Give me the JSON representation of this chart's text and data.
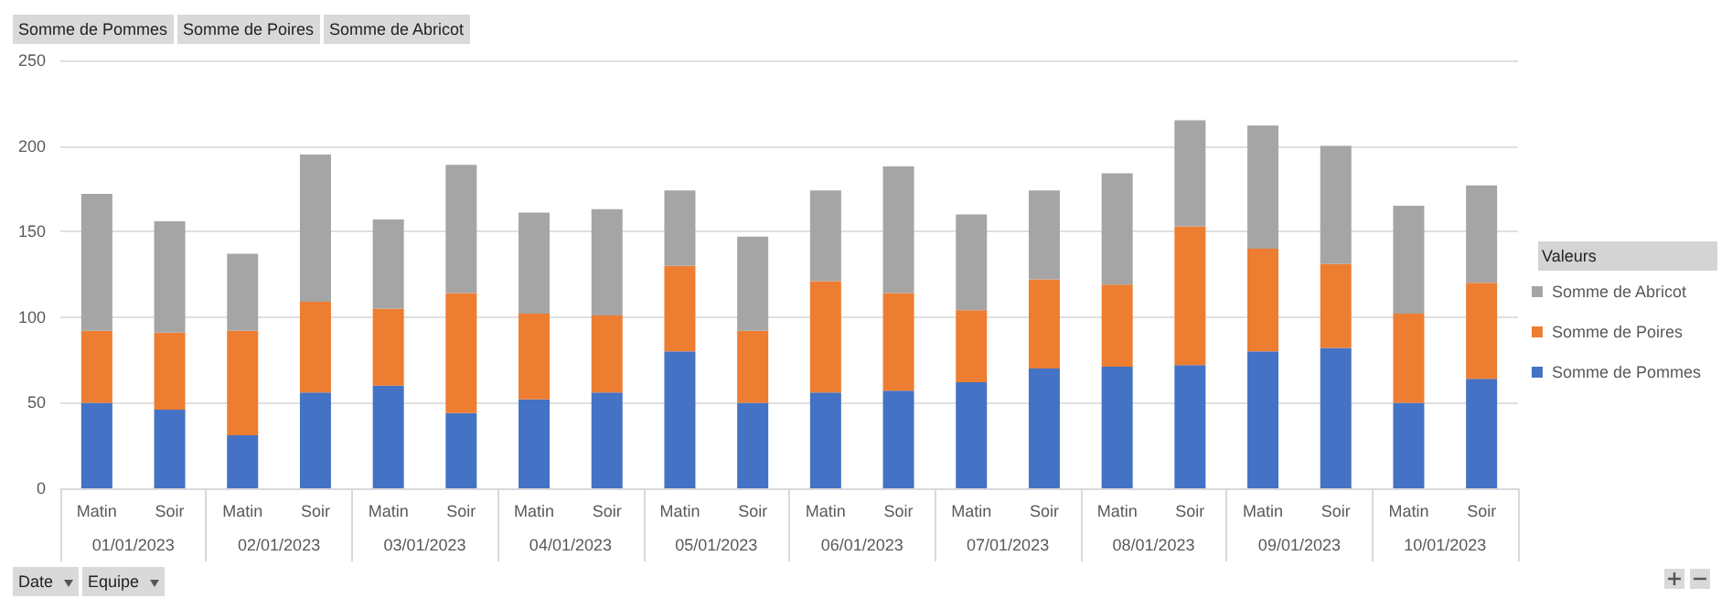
{
  "chart_data": {
    "type": "bar",
    "stacked": true,
    "categories": [
      "Matin",
      "Soir",
      "Matin",
      "Soir",
      "Matin",
      "Soir",
      "Matin",
      "Soir",
      "Matin",
      "Soir",
      "Matin",
      "Soir",
      "Matin",
      "Soir",
      "Matin",
      "Soir",
      "Matin",
      "Soir",
      "Matin",
      "Soir"
    ],
    "series": [
      {
        "name": "Somme de Pommes",
        "color": "#4472c4",
        "values": [
          50,
          46,
          31,
          56,
          60,
          44,
          52,
          56,
          80,
          50,
          56,
          57,
          62,
          70,
          71,
          72,
          80,
          82,
          50,
          64
        ]
      },
      {
        "name": "Somme de Poires",
        "color": "#ed7d31",
        "values": [
          42,
          45,
          61,
          53,
          45,
          70,
          50,
          45,
          50,
          42,
          65,
          57,
          42,
          52,
          48,
          81,
          60,
          49,
          52,
          56
        ]
      },
      {
        "name": "Somme de Abricot",
        "color": "#a5a5a5",
        "values": [
          80,
          65,
          45,
          86,
          52,
          75,
          59,
          62,
          44,
          55,
          53,
          74,
          56,
          52,
          65,
          62,
          72,
          69,
          63,
          57
        ]
      }
    ],
    "ylim": [
      0,
      250
    ],
    "yticks": [
      0,
      50,
      100,
      150,
      200,
      250
    ],
    "grid": "y",
    "legend": "right",
    "legend_title": "Valeurs",
    "annotations": [
      "Somme de Pommes",
      "Somme de Poires",
      "Somme de Abricot",
      "01/01/2023",
      "02/01/2023",
      "03/01/2023",
      "04/01/2023",
      "05/01/2023",
      "06/01/2023",
      "07/01/2023",
      "08/01/2023",
      "09/01/2023",
      "10/01/2023",
      "Date",
      "Equipe"
    ]
  }
}
